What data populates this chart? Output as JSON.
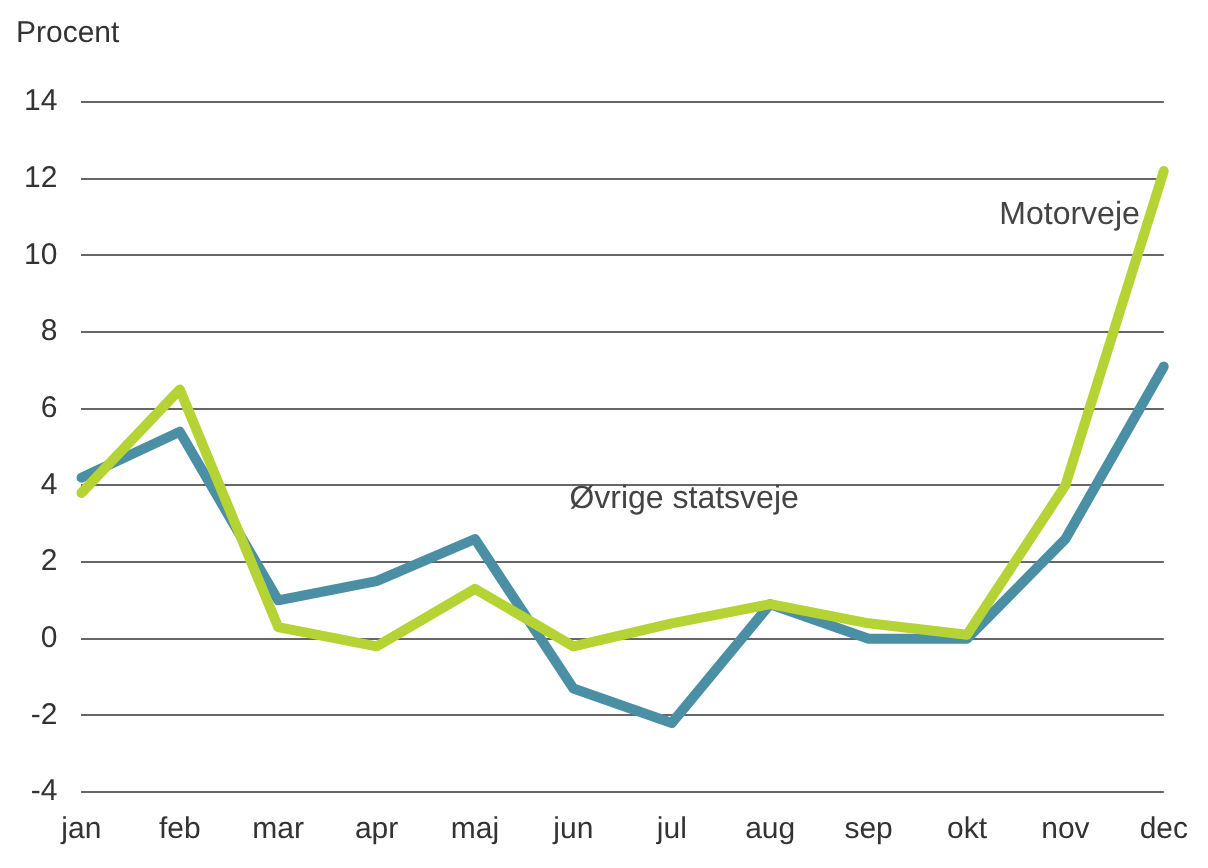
{
  "chart_data": {
    "type": "line",
    "ylabel": "Procent",
    "categories": [
      "jan",
      "feb",
      "mar",
      "apr",
      "maj",
      "jun",
      "jul",
      "aug",
      "sep",
      "okt",
      "nov",
      "dec"
    ],
    "series": [
      {
        "name": "Motorveje",
        "color": "#b5d334",
        "values": [
          3.8,
          6.5,
          0.3,
          -0.2,
          1.3,
          -0.2,
          0.4,
          0.9,
          0.4,
          0.1,
          4.0,
          12.2
        ]
      },
      {
        "name": "Øvrige statsveje",
        "color": "#4a8fa3",
        "values": [
          4.2,
          5.4,
          1.0,
          1.5,
          2.6,
          -1.3,
          -2.2,
          0.9,
          0.0,
          0.0,
          2.6,
          7.1
        ]
      }
    ],
    "ylim": [
      -4,
      14
    ],
    "yticks": [
      -4,
      -2,
      0,
      2,
      4,
      6,
      8,
      10,
      12,
      14
    ],
    "grid": "y",
    "legend": false,
    "marker": "none",
    "line_style": "solid"
  }
}
